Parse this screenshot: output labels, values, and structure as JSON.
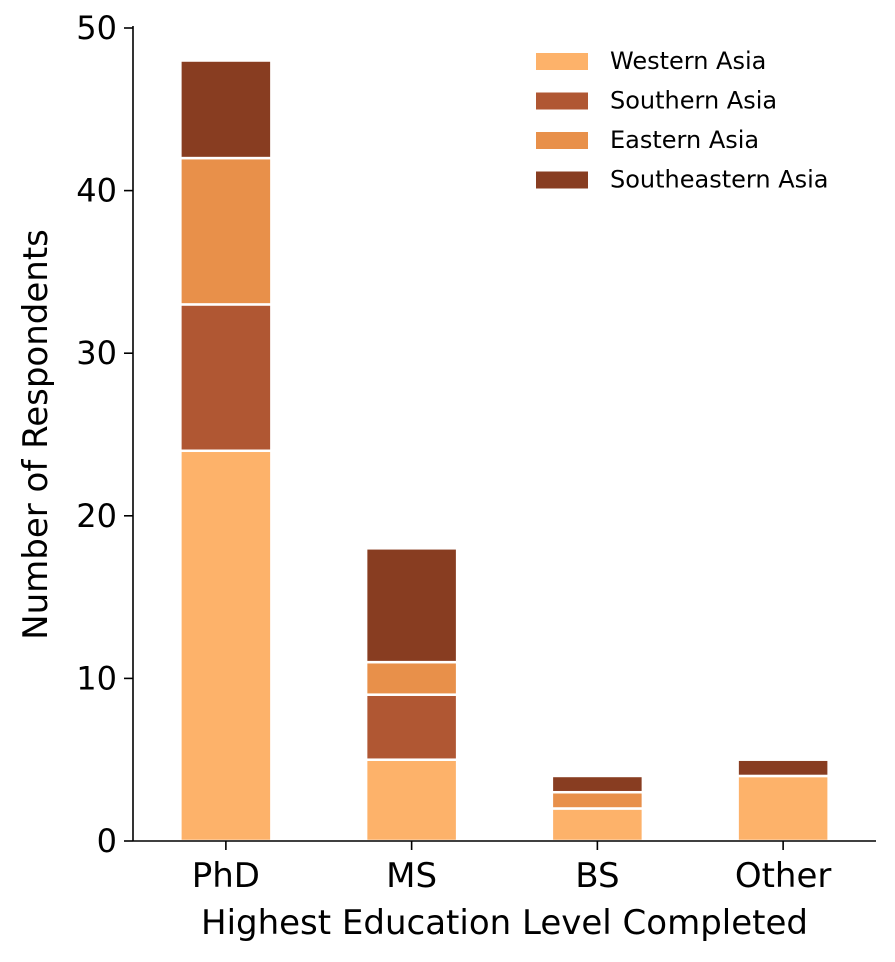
{
  "chart_data": {
    "type": "bar",
    "stacked": true,
    "categories": [
      "PhD",
      "MS",
      "BS",
      "Other"
    ],
    "series": [
      {
        "name": "Western Asia",
        "values": [
          24,
          5,
          2,
          4
        ],
        "color": "#fdb26a"
      },
      {
        "name": "Southern Asia",
        "values": [
          9,
          4,
          0,
          0
        ],
        "color": "#b05733"
      },
      {
        "name": "Eastern Asia",
        "values": [
          9,
          2,
          1,
          0
        ],
        "color": "#e8904a"
      },
      {
        "name": "Southeastern Asia",
        "values": [
          6,
          7,
          1,
          1
        ],
        "color": "#883d21"
      }
    ],
    "xlabel": "Highest Education Level Completed",
    "ylabel": "Number of Respondents",
    "ylim": [
      0,
      50
    ],
    "yticks": [
      "0",
      "10",
      "20",
      "30",
      "40",
      "50"
    ],
    "legend_position": "top-right",
    "grid": false
  }
}
